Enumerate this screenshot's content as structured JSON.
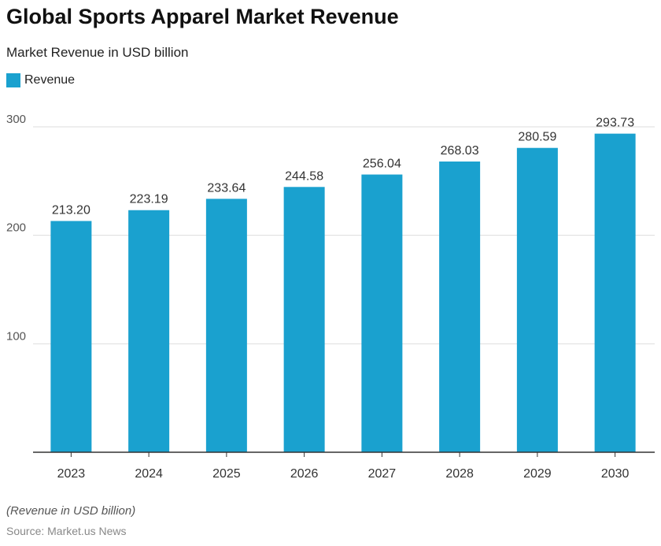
{
  "title": "Global Sports Apparel Market Revenue",
  "subtitle": "Market Revenue in USD billion",
  "note": "(Revenue in USD billion)",
  "source": "Source: Market.us News",
  "chart_data": {
    "type": "bar",
    "title": "Global Sports Apparel Market Revenue",
    "subtitle": "Market Revenue in USD billion",
    "categories": [
      "2023",
      "2024",
      "2025",
      "2026",
      "2027",
      "2028",
      "2029",
      "2030"
    ],
    "series": [
      {
        "name": "Revenue",
        "values": [
          213.2,
          223.19,
          233.64,
          244.58,
          256.04,
          268.03,
          280.59,
          293.73
        ],
        "color": "#1aa1cf"
      }
    ],
    "data_labels": [
      "213.20",
      "223.19",
      "233.64",
      "244.58",
      "256.04",
      "268.03",
      "280.59",
      "293.73"
    ],
    "yticks": [
      "100",
      "200",
      "300"
    ],
    "ylim": [
      0,
      300
    ],
    "grid": true,
    "legend": "top-left"
  }
}
